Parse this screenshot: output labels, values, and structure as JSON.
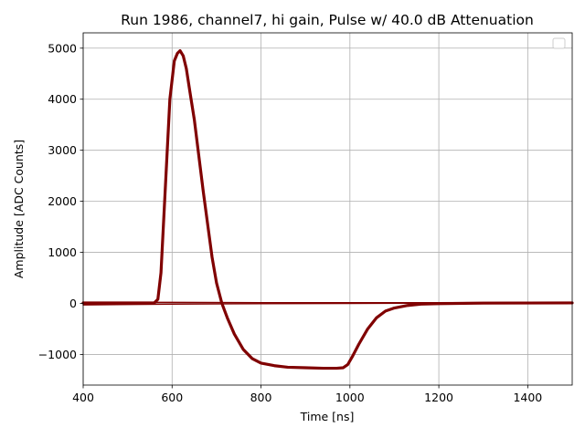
{
  "chart_data": {
    "type": "line",
    "title": "Run 1986, channel7, hi gain, Pulse w/ 40.0 dB Attenuation",
    "xlabel": "Time [ns]",
    "ylabel": "Amplitude [ADC Counts]",
    "xlim": [
      400,
      1500
    ],
    "ylim": [
      -1600,
      5300
    ],
    "xticks": [
      400,
      600,
      800,
      1000,
      1200,
      1400
    ],
    "yticks": [
      -1000,
      0,
      1000,
      2000,
      3000,
      4000,
      5000
    ],
    "ytick_labels": [
      "−1000",
      "0",
      "1000",
      "2000",
      "3000",
      "4000",
      "5000"
    ],
    "grid": true,
    "legend": "top-right (empty)",
    "line_color": "#800000",
    "series": [
      {
        "x": [
          400,
          500,
          560,
          568,
          575,
          585,
          595,
          605,
          612,
          618,
          625,
          632,
          640,
          650,
          660,
          670,
          680,
          690,
          700,
          712,
          725,
          740,
          760,
          780,
          800,
          830,
          860,
          900,
          940,
          970,
          985,
          995,
          1005,
          1020,
          1040,
          1060,
          1080,
          1100,
          1130,
          1160,
          1200,
          1300,
          1400,
          1500
        ],
        "y": [
          10,
          10,
          10,
          80,
          600,
          2300,
          4000,
          4750,
          4900,
          4950,
          4850,
          4600,
          4150,
          3600,
          2900,
          2200,
          1550,
          900,
          400,
          0,
          -300,
          -600,
          -900,
          -1080,
          -1170,
          -1220,
          -1250,
          -1260,
          -1270,
          -1270,
          -1260,
          -1200,
          -1050,
          -800,
          -500,
          -280,
          -150,
          -90,
          -40,
          -15,
          -5,
          5,
          8,
          10
        ]
      },
      {
        "x": [
          400,
          600,
          800,
          1000,
          1200,
          1400,
          1500
        ],
        "y": [
          -30,
          -15,
          -5,
          0,
          5,
          10,
          12
        ]
      },
      {
        "x": [
          400,
          600,
          800,
          1000,
          1200,
          1400,
          1500
        ],
        "y": [
          20,
          20,
          15,
          15,
          15,
          20,
          20
        ]
      }
    ]
  }
}
